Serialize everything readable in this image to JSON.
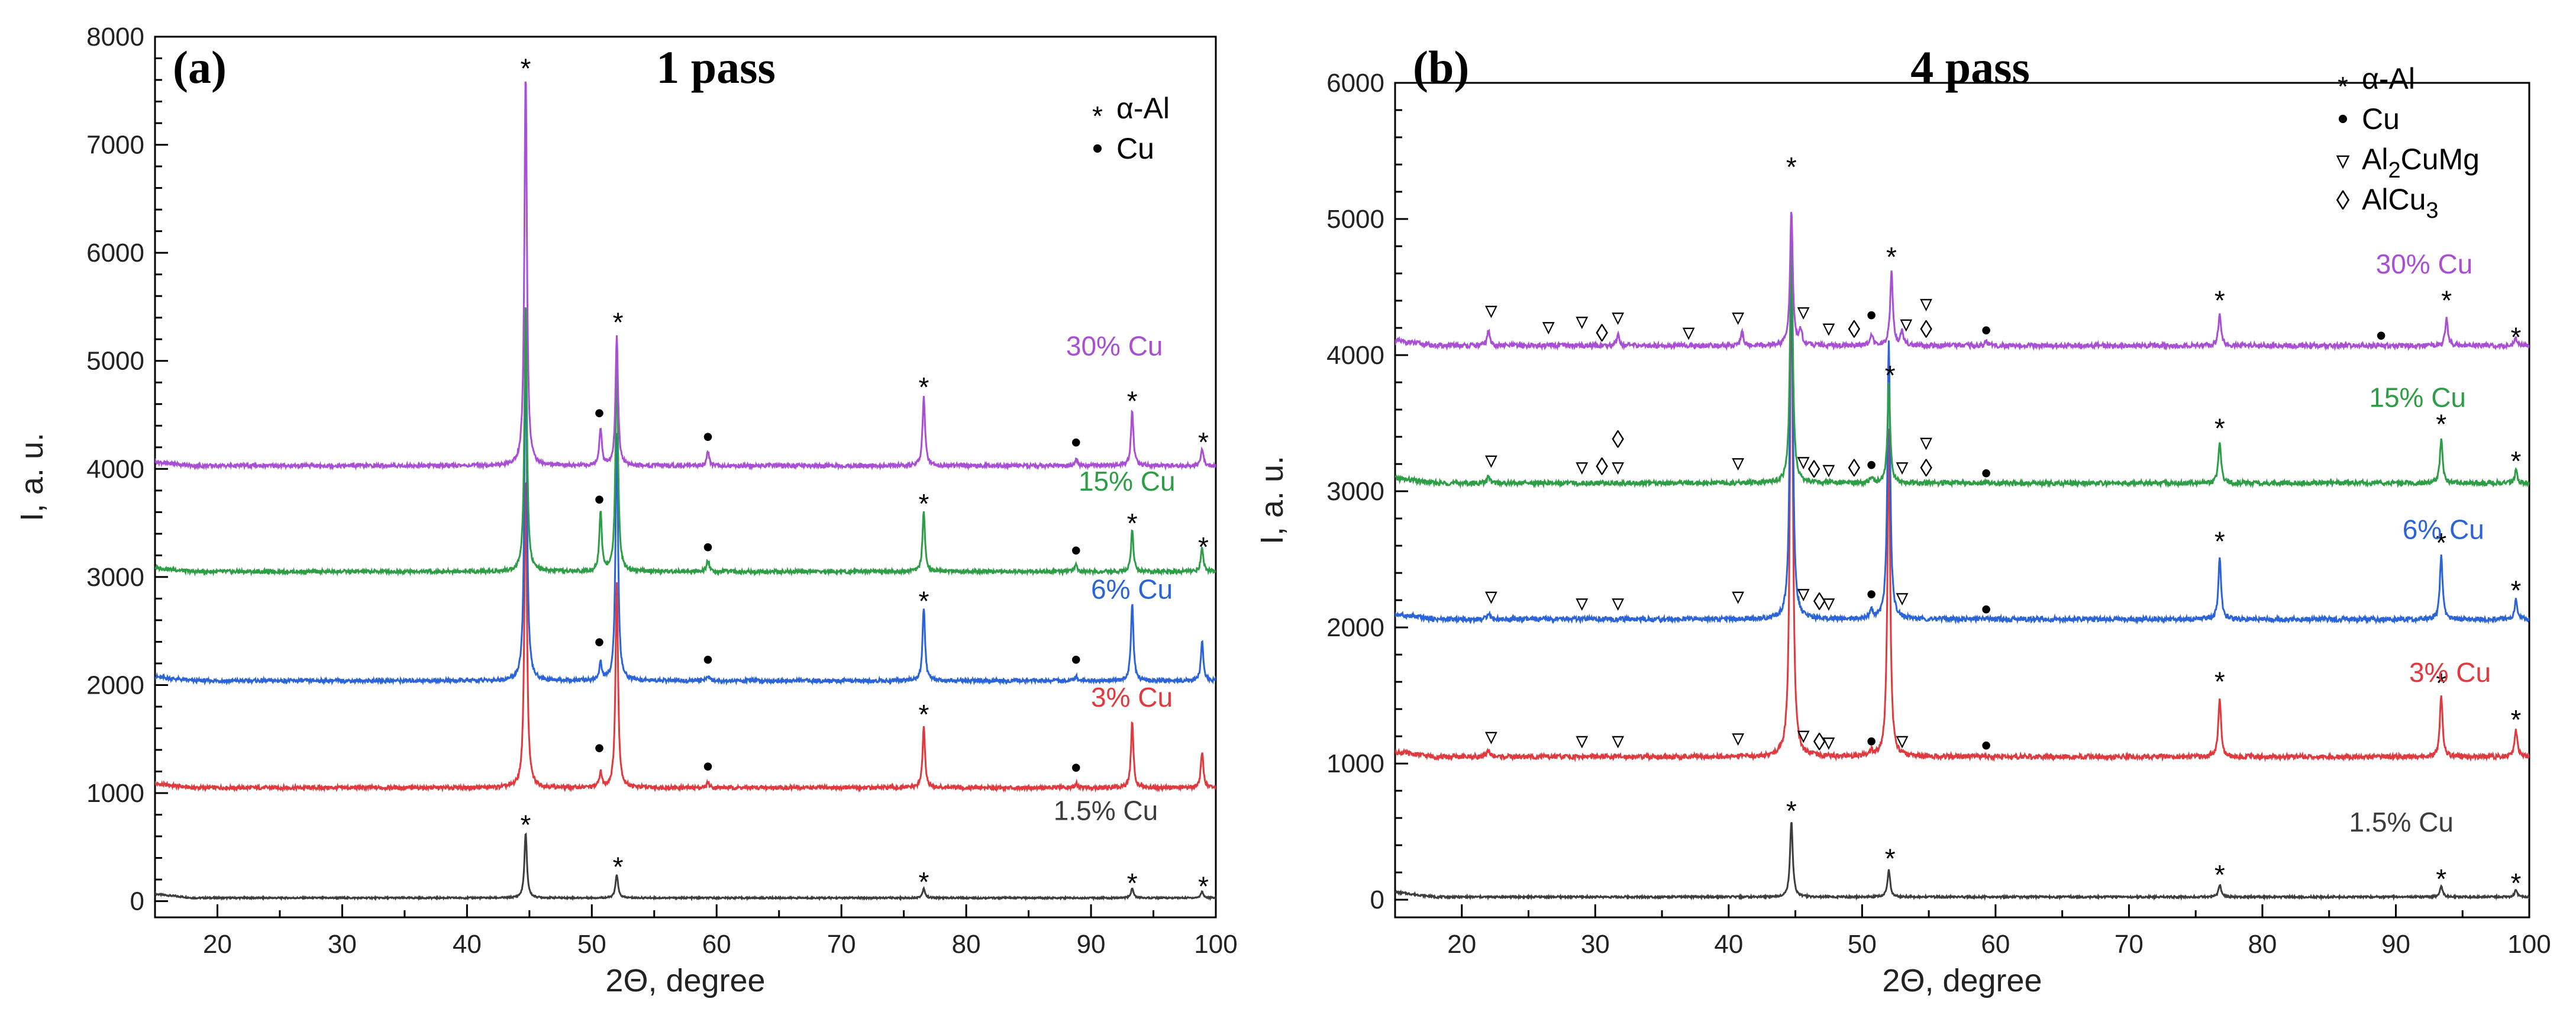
{
  "colors": {
    "1.5% Cu": "#3d3d3d",
    "3% Cu": "#e0393e",
    "6% Cu": "#2a64d8",
    "15% Cu": "#2e9e46",
    "30% Cu": "#a94fd6"
  },
  "chart_data": [
    {
      "type": "line",
      "panel_label": "(a)",
      "title": "1 pass",
      "xlabel": "2Θ, degree",
      "ylabel": "I, a. u.",
      "xlim": [
        15,
        100
      ],
      "ylim": [
        -150,
        8000
      ],
      "xticks": [
        20,
        30,
        40,
        50,
        60,
        70,
        80,
        90,
        100
      ],
      "yticks": [
        0,
        1000,
        2000,
        3000,
        4000,
        5000,
        6000,
        7000,
        8000
      ],
      "legend": [
        {
          "symbol": "*",
          "label": "α-Al"
        },
        {
          "symbol": "•",
          "label": "Cu"
        }
      ],
      "series": [
        {
          "name": "1.5% Cu",
          "baseline": 30,
          "peaks": [
            [
              44.7,
              600
            ],
            [
              52.0,
              220
            ],
            [
              76.6,
              90
            ],
            [
              93.3,
              90
            ],
            [
              98.9,
              60
            ]
          ],
          "markers": [
            {
              "x": 44.7,
              "y": 730,
              "s": "*"
            },
            {
              "x": 52.1,
              "y": 340,
              "s": "*"
            },
            {
              "x": 76.6,
              "y": 200,
              "s": "*"
            },
            {
              "x": 93.3,
              "y": 190,
              "s": "*"
            },
            {
              "x": 99.0,
              "y": 160,
              "s": "*"
            }
          ]
        },
        {
          "name": "3% Cu",
          "baseline": 1050,
          "peaks": [
            [
              44.7,
              2900
            ],
            [
              52.0,
              1900
            ],
            [
              50.7,
              140
            ],
            [
              59.3,
              50
            ],
            [
              76.6,
              560
            ],
            [
              88.8,
              40
            ],
            [
              93.3,
              600
            ],
            [
              98.9,
              330
            ]
          ],
          "markers": [
            {
              "x": 50.6,
              "y": 1400,
              "s": "•"
            },
            {
              "x": 59.3,
              "y": 1230,
              "s": "•"
            },
            {
              "x": 76.6,
              "y": 1750,
              "s": "*"
            },
            {
              "x": 88.8,
              "y": 1220,
              "s": "•"
            }
          ]
        },
        {
          "name": "6% Cu",
          "baseline": 2040,
          "peaks": [
            [
              44.7,
              3200
            ],
            [
              52.0,
              2300
            ],
            [
              50.7,
              160
            ],
            [
              59.3,
              50
            ],
            [
              76.6,
              680
            ],
            [
              88.8,
              40
            ],
            [
              93.3,
              720
            ],
            [
              98.9,
              360
            ]
          ],
          "markers": [
            {
              "x": 50.6,
              "y": 2380,
              "s": "•"
            },
            {
              "x": 59.3,
              "y": 2220,
              "s": "•"
            },
            {
              "x": 76.6,
              "y": 2800,
              "s": "*"
            },
            {
              "x": 88.8,
              "y": 2220,
              "s": "•"
            }
          ]
        },
        {
          "name": "15% Cu",
          "baseline": 3050,
          "peaks": [
            [
              44.7,
              2500
            ],
            [
              52.0,
              2000
            ],
            [
              50.7,
              550
            ],
            [
              59.3,
              110
            ],
            [
              76.6,
              560
            ],
            [
              88.8,
              60
            ],
            [
              93.3,
              380
            ],
            [
              98.9,
              220
            ]
          ],
          "markers": [
            {
              "x": 50.6,
              "y": 3700,
              "s": "•"
            },
            {
              "x": 59.3,
              "y": 3260,
              "s": "•"
            },
            {
              "x": 76.6,
              "y": 3700,
              "s": "*"
            },
            {
              "x": 88.8,
              "y": 3230,
              "s": "•"
            },
            {
              "x": 93.3,
              "y": 3520,
              "s": "*"
            },
            {
              "x": 99.0,
              "y": 3300,
              "s": "*"
            }
          ]
        },
        {
          "name": "30% Cu",
          "baseline": 4030,
          "peaks": [
            [
              44.7,
              3640
            ],
            [
              52.0,
              1200
            ],
            [
              50.7,
              350
            ],
            [
              59.3,
              130
            ],
            [
              76.6,
              640
            ],
            [
              88.8,
              60
            ],
            [
              93.3,
              500
            ],
            [
              98.9,
              160
            ]
          ],
          "markers": [
            {
              "x": 44.7,
              "y": 7730,
              "s": "*"
            },
            {
              "x": 52.1,
              "y": 5380,
              "s": "*"
            },
            {
              "x": 50.6,
              "y": 4500,
              "s": "•"
            },
            {
              "x": 59.3,
              "y": 4280,
              "s": "•"
            },
            {
              "x": 76.6,
              "y": 4780,
              "s": "*"
            },
            {
              "x": 88.8,
              "y": 4230,
              "s": "•"
            },
            {
              "x": 93.3,
              "y": 4650,
              "s": "*"
            },
            {
              "x": 99.0,
              "y": 4270,
              "s": "*"
            }
          ]
        }
      ],
      "labels": [
        {
          "text": "30% Cu",
          "x": 88,
          "y": 5050,
          "series": "30% Cu"
        },
        {
          "text": "15% Cu",
          "x": 89,
          "y": 3800,
          "series": "15% Cu"
        },
        {
          "text": "6% Cu",
          "x": 90,
          "y": 2800,
          "series": "6% Cu"
        },
        {
          "text": "3% Cu",
          "x": 90,
          "y": 1800,
          "series": "3% Cu"
        },
        {
          "text": "1.5% Cu",
          "x": 87,
          "y": 750,
          "series": "1.5% Cu"
        }
      ]
    },
    {
      "type": "line",
      "panel_label": "(b)",
      "title": "4 pass",
      "xlabel": "2Θ, degree",
      "ylabel": "I, a. u.",
      "xlim": [
        15,
        100
      ],
      "ylim": [
        -130,
        6000
      ],
      "xticks": [
        20,
        30,
        40,
        50,
        60,
        70,
        80,
        90,
        100
      ],
      "yticks": [
        0,
        1000,
        2000,
        3000,
        4000,
        5000,
        6000
      ],
      "legend": [
        {
          "symbol": "*",
          "label": "α-Al"
        },
        {
          "symbol": "•",
          "label": "Cu"
        },
        {
          "symbol": "▿",
          "label": "Al",
          "sub": "2",
          "tail": "CuMg"
        },
        {
          "symbol": "◊",
          "label": "AlCu",
          "sub": "3",
          "tail": ""
        }
      ],
      "series": [
        {
          "name": "1.5% Cu",
          "baseline": 20,
          "peaks": [
            [
              44.7,
              560
            ],
            [
              52.0,
              200
            ],
            [
              76.8,
              90
            ],
            [
              93.4,
              80
            ],
            [
              99.0,
              50
            ]
          ],
          "markers": [
            {
              "x": 44.7,
              "y": 670,
              "s": "*"
            },
            {
              "x": 52.1,
              "y": 320,
              "s": "*"
            },
            {
              "x": 76.8,
              "y": 200,
              "s": "*"
            },
            {
              "x": 93.4,
              "y": 170,
              "s": "*"
            },
            {
              "x": 99.0,
              "y": 140,
              "s": "*"
            }
          ]
        },
        {
          "name": "3% Cu",
          "baseline": 1050,
          "peaks": [
            [
              22.0,
              50
            ],
            [
              44.7,
              3900
            ],
            [
              52.0,
              2400
            ],
            [
              50.7,
              40
            ],
            [
              76.8,
              440
            ],
            [
              93.4,
              450
            ],
            [
              99.0,
              200
            ]
          ],
          "markers": [
            {
              "x": 22.2,
              "y": 1200,
              "s": "▿"
            },
            {
              "x": 29.0,
              "y": 1170,
              "s": "▿"
            },
            {
              "x": 31.7,
              "y": 1170,
              "s": "▿"
            },
            {
              "x": 40.7,
              "y": 1190,
              "s": "▿"
            },
            {
              "x": 45.6,
              "y": 1210,
              "s": "▿"
            },
            {
              "x": 46.8,
              "y": 1160,
              "s": "◊"
            },
            {
              "x": 47.5,
              "y": 1160,
              "s": "▿"
            },
            {
              "x": 50.7,
              "y": 1150,
              "s": "•"
            },
            {
              "x": 53.0,
              "y": 1170,
              "s": "▿"
            },
            {
              "x": 59.3,
              "y": 1120,
              "s": "•"
            },
            {
              "x": 76.8,
              "y": 1620,
              "s": "*"
            },
            {
              "x": 93.4,
              "y": 1610,
              "s": "*"
            },
            {
              "x": 99.0,
              "y": 1340,
              "s": "*"
            }
          ]
        },
        {
          "name": "6% Cu",
          "baseline": 2060,
          "peaks": [
            [
              22.0,
              50
            ],
            [
              44.7,
              3000
            ],
            [
              52.0,
              2050
            ],
            [
              50.7,
              60
            ],
            [
              76.8,
              450
            ],
            [
              93.4,
              460
            ],
            [
              99.0,
              140
            ]
          ],
          "markers": [
            {
              "x": 22.2,
              "y": 2230,
              "s": "▿"
            },
            {
              "x": 29.0,
              "y": 2180,
              "s": "▿"
            },
            {
              "x": 31.7,
              "y": 2180,
              "s": "▿"
            },
            {
              "x": 40.7,
              "y": 2230,
              "s": "▿"
            },
            {
              "x": 45.6,
              "y": 2250,
              "s": "▿"
            },
            {
              "x": 46.8,
              "y": 2190,
              "s": "◊"
            },
            {
              "x": 47.5,
              "y": 2180,
              "s": "▿"
            },
            {
              "x": 50.7,
              "y": 2230,
              "s": "•"
            },
            {
              "x": 53.0,
              "y": 2220,
              "s": "▿"
            },
            {
              "x": 59.3,
              "y": 2120,
              "s": "•"
            },
            {
              "x": 76.8,
              "y": 2650,
              "s": "*"
            },
            {
              "x": 93.4,
              "y": 2640,
              "s": "*"
            },
            {
              "x": 99.0,
              "y": 2290,
              "s": "*"
            }
          ]
        },
        {
          "name": "15% Cu",
          "baseline": 3060,
          "peaks": [
            [
              22.0,
              50
            ],
            [
              44.7,
              1900
            ],
            [
              52.0,
              720
            ],
            [
              50.7,
              40
            ],
            [
              76.8,
              300
            ],
            [
              93.4,
              320
            ],
            [
              99.0,
              90
            ]
          ],
          "markers": [
            {
              "x": 22.2,
              "y": 3230,
              "s": "▿"
            },
            {
              "x": 29.0,
              "y": 3180,
              "s": "▿"
            },
            {
              "x": 30.5,
              "y": 3180,
              "s": "◊"
            },
            {
              "x": 31.7,
              "y": 3380,
              "s": "◊"
            },
            {
              "x": 31.7,
              "y": 3180,
              "s": "▿"
            },
            {
              "x": 40.7,
              "y": 3210,
              "s": "▿"
            },
            {
              "x": 45.6,
              "y": 3220,
              "s": "▿"
            },
            {
              "x": 46.4,
              "y": 3160,
              "s": "◊"
            },
            {
              "x": 47.5,
              "y": 3160,
              "s": "▿"
            },
            {
              "x": 49.4,
              "y": 3170,
              "s": "◊"
            },
            {
              "x": 50.7,
              "y": 3180,
              "s": "•"
            },
            {
              "x": 53.0,
              "y": 3180,
              "s": "▿"
            },
            {
              "x": 54.8,
              "y": 3360,
              "s": "▿"
            },
            {
              "x": 54.8,
              "y": 3170,
              "s": "◊"
            },
            {
              "x": 59.3,
              "y": 3120,
              "s": "•"
            },
            {
              "x": 52.1,
              "y": 3870,
              "s": "*"
            },
            {
              "x": 76.8,
              "y": 3480,
              "s": "*"
            },
            {
              "x": 93.4,
              "y": 3510,
              "s": "*"
            },
            {
              "x": 99.0,
              "y": 3240,
              "s": "*"
            }
          ]
        },
        {
          "name": "30% Cu",
          "baseline": 4070,
          "peaks": [
            [
              22.0,
              110
            ],
            [
              31.7,
              90
            ],
            [
              41.0,
              100
            ],
            [
              44.7,
              1000
            ],
            [
              45.4,
              110
            ],
            [
              50.7,
              90
            ],
            [
              52.2,
              540
            ],
            [
              53.0,
              110
            ],
            [
              59.3,
              30
            ],
            [
              76.8,
              230
            ],
            [
              93.8,
              200
            ],
            [
              99.0,
              50
            ]
          ],
          "markers": [
            {
              "x": 44.7,
              "y": 5400,
              "s": "*"
            },
            {
              "x": 22.2,
              "y": 4330,
              "s": "▿"
            },
            {
              "x": 26.5,
              "y": 4210,
              "s": "▿"
            },
            {
              "x": 29.0,
              "y": 4250,
              "s": "▿"
            },
            {
              "x": 30.5,
              "y": 4160,
              "s": "◊"
            },
            {
              "x": 31.7,
              "y": 4280,
              "s": "▿"
            },
            {
              "x": 37.0,
              "y": 4170,
              "s": "▿"
            },
            {
              "x": 40.7,
              "y": 4280,
              "s": "▿"
            },
            {
              "x": 45.6,
              "y": 4320,
              "s": "▿"
            },
            {
              "x": 47.5,
              "y": 4200,
              "s": "▿"
            },
            {
              "x": 49.4,
              "y": 4190,
              "s": "◊"
            },
            {
              "x": 50.7,
              "y": 4280,
              "s": "•"
            },
            {
              "x": 52.2,
              "y": 4740,
              "s": "*"
            },
            {
              "x": 53.3,
              "y": 4230,
              "s": "▿"
            },
            {
              "x": 54.8,
              "y": 4380,
              "s": "▿"
            },
            {
              "x": 54.8,
              "y": 4190,
              "s": "◊"
            },
            {
              "x": 59.3,
              "y": 4170,
              "s": "•"
            },
            {
              "x": 76.8,
              "y": 4420,
              "s": "*"
            },
            {
              "x": 88.9,
              "y": 4130,
              "s": "•"
            },
            {
              "x": 93.8,
              "y": 4420,
              "s": "*"
            },
            {
              "x": 99.0,
              "y": 4150,
              "s": "*"
            }
          ]
        }
      ],
      "labels": [
        {
          "text": "30% Cu",
          "x": 88.5,
          "y": 4600,
          "series": "30% Cu"
        },
        {
          "text": "15% Cu",
          "x": 88,
          "y": 3620,
          "series": "15% Cu"
        },
        {
          "text": "6% Cu",
          "x": 90.5,
          "y": 2650,
          "series": "6% Cu"
        },
        {
          "text": "3% Cu",
          "x": 91,
          "y": 1600,
          "series": "3% Cu"
        },
        {
          "text": "1.5% Cu",
          "x": 86.5,
          "y": 500,
          "series": "1.5% Cu"
        }
      ]
    }
  ]
}
